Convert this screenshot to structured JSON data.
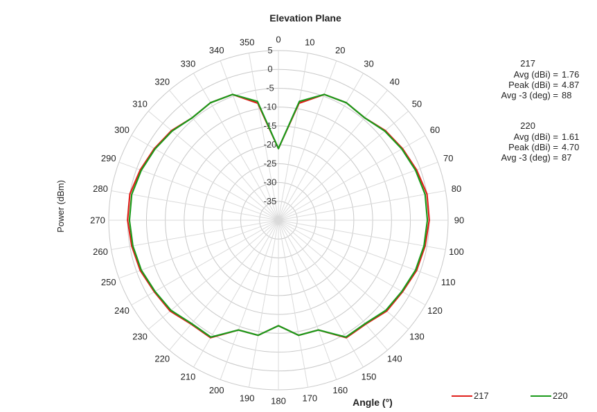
{
  "chart_data": {
    "type": "polar-line",
    "title": "Elevation Plane",
    "xlabel": "Angle (°)",
    "ylabel": "Power (dBm)",
    "angles": [
      0,
      10,
      20,
      30,
      40,
      50,
      60,
      70,
      80,
      90,
      100,
      110,
      120,
      130,
      140,
      150,
      160,
      170,
      180,
      190,
      200,
      210,
      220,
      230,
      240,
      250,
      260,
      270,
      280,
      290,
      300,
      310,
      320,
      330,
      340,
      350
    ],
    "radial_ticks": [
      5,
      0,
      -5,
      -10,
      -15,
      -20,
      -25,
      -30,
      -35
    ],
    "rlim": [
      -40,
      5
    ],
    "grid": true,
    "series": [
      {
        "name": "217",
        "color": "#e0201b",
        "values": [
          -21,
          -8.5,
          -4.5,
          -4,
          -4.5,
          -3,
          -2,
          -1,
          0,
          0,
          -0.5,
          -1,
          -2,
          -2.5,
          -4,
          -4,
          -9,
          -9,
          -12,
          -9,
          -9,
          -4,
          -4,
          -2.5,
          -2,
          -1,
          -0.5,
          0,
          0,
          -1,
          -2,
          -3,
          -4.5,
          -4,
          -4.5,
          -8.5
        ]
      },
      {
        "name": "220",
        "color": "#1a9a1a",
        "values": [
          -21,
          -8,
          -4.5,
          -4,
          -4.5,
          -3.2,
          -2.2,
          -1.3,
          -0.5,
          -0.5,
          -0.8,
          -1.3,
          -2.2,
          -2.8,
          -4.2,
          -4.2,
          -9,
          -9,
          -12,
          -9,
          -9,
          -4.2,
          -4.2,
          -2.8,
          -2.2,
          -1.3,
          -0.8,
          -0.5,
          -0.5,
          -1.3,
          -2.2,
          -3.2,
          -4.5,
          -4,
          -4.5,
          -8
        ]
      }
    ]
  },
  "stats": [
    {
      "title": "217",
      "rows": [
        {
          "label": "Avg (dBi) =",
          "value": "1.76"
        },
        {
          "label": "Peak (dBi) =",
          "value": "4.87"
        },
        {
          "label": "Avg -3 (deg) =",
          "value": "88"
        }
      ]
    },
    {
      "title": "220",
      "rows": [
        {
          "label": "Avg (dBi) =",
          "value": "1.61"
        },
        {
          "label": "Peak (dBi) =",
          "value": "4.70"
        },
        {
          "label": "Avg -3 (deg) =",
          "value": "87"
        }
      ]
    }
  ],
  "legend": [
    {
      "label": "217",
      "color": "#e0201b"
    },
    {
      "label": "220",
      "color": "#1a9a1a"
    }
  ]
}
